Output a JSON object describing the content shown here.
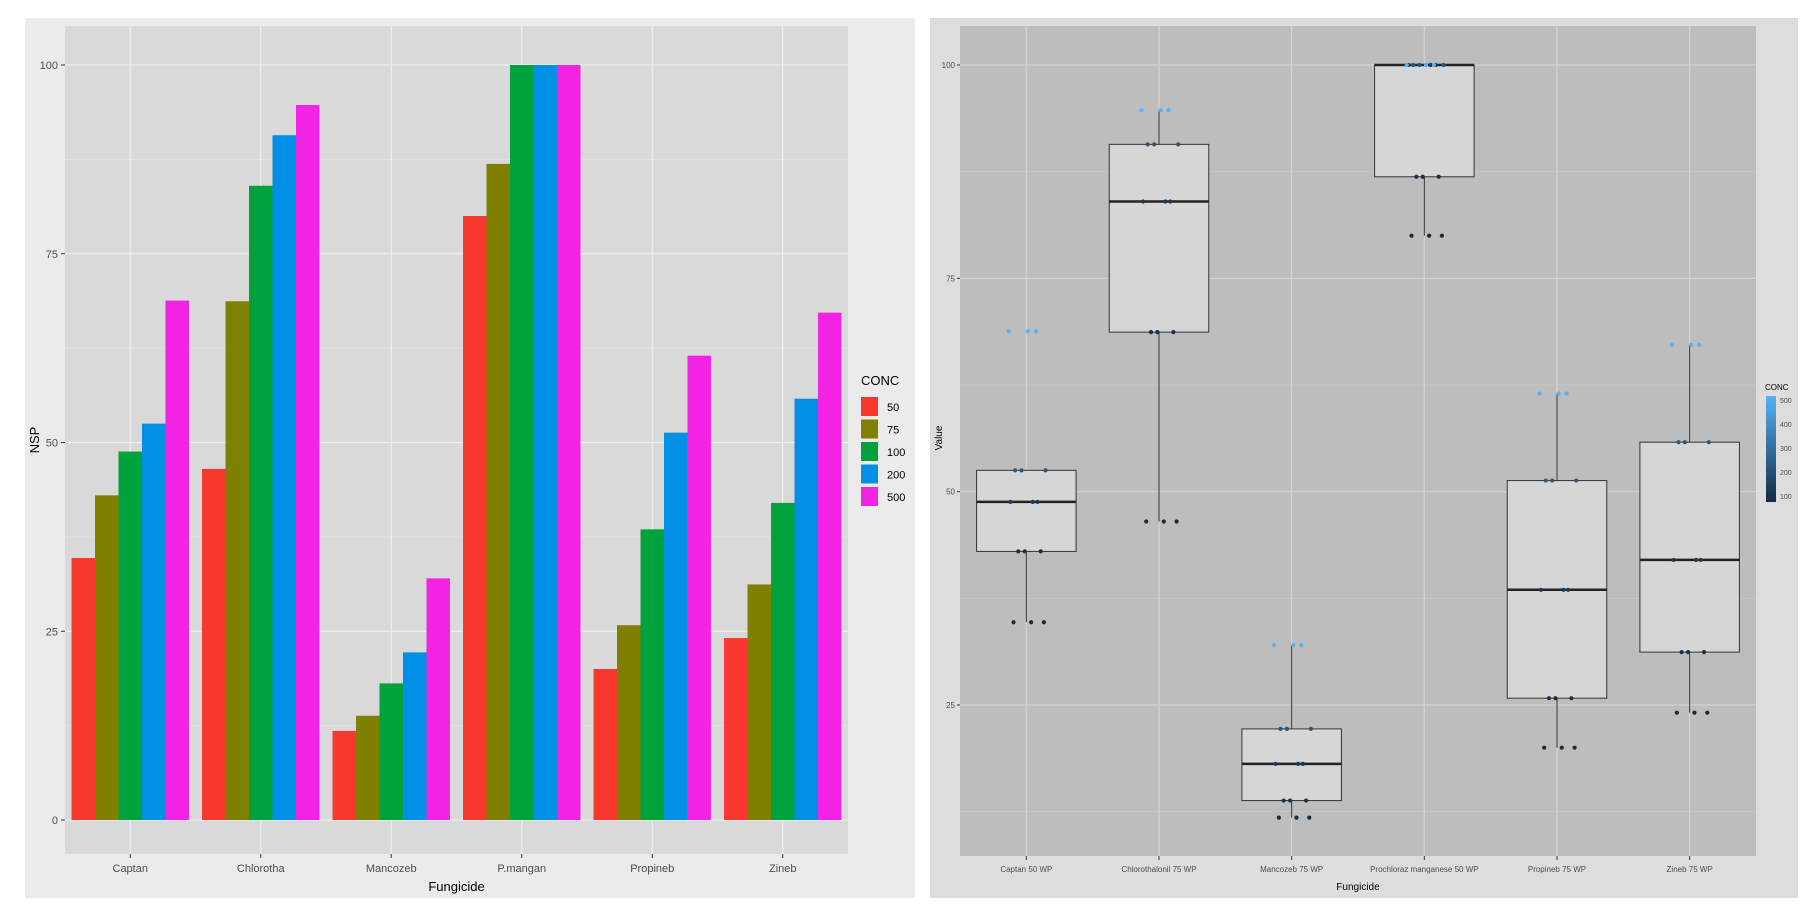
{
  "chart_data": [
    {
      "type": "bar",
      "xlabel": "Fungicide",
      "ylabel": "NSP",
      "ylim": [
        0,
        100
      ],
      "yticks": [
        "0",
        "25",
        "50",
        "75",
        "100"
      ],
      "categories": [
        "Captan",
        "Chlorotha",
        "Mancozeb",
        "P.mangan",
        "Propineb",
        "Zineb"
      ],
      "legend": {
        "title": "CONC",
        "position": "right"
      },
      "series": [
        {
          "name": "50",
          "color": "#f8372f",
          "values": [
            34.7,
            46.5,
            11.8,
            80.0,
            20.0,
            24.1
          ]
        },
        {
          "name": "75",
          "color": "#7f7f00",
          "values": [
            43.0,
            68.7,
            13.8,
            86.9,
            25.8,
            31.2
          ]
        },
        {
          "name": "100",
          "color": "#00a33b",
          "values": [
            48.8,
            84.0,
            18.1,
            100,
            38.5,
            42.0
          ]
        },
        {
          "name": "200",
          "color": "#0091e6",
          "values": [
            52.5,
            90.7,
            22.2,
            100,
            51.3,
            55.8
          ]
        },
        {
          "name": "500",
          "color": "#f323e6",
          "values": [
            68.8,
            94.7,
            32.0,
            100,
            61.5,
            67.2
          ]
        }
      ],
      "grid": true,
      "background": "#d9d9d9"
    },
    {
      "type": "box",
      "xlabel": "Fungicide",
      "ylabel": "Value",
      "yticks": [
        "25",
        "50",
        "75",
        "100"
      ],
      "ylim": [
        7,
        101.5
      ],
      "categories": [
        "Captan 50 WP",
        "Chlorothalonil 75 WP",
        "Mancozeb 75 WP",
        "Prochloraz manganese 50 WP",
        "Propineb 75 WP",
        "Zineb 75 WP"
      ],
      "boxes": [
        {
          "min": 34.7,
          "q1": 43.0,
          "median": 48.8,
          "q3": 52.5,
          "max": 52.5
        },
        {
          "min": 46.5,
          "q1": 68.7,
          "median": 84.0,
          "q3": 90.7,
          "max": 94.7
        },
        {
          "min": 11.8,
          "q1": 13.8,
          "median": 18.1,
          "q3": 22.2,
          "max": 32.0
        },
        {
          "min": 80.0,
          "q1": 86.9,
          "median": 100,
          "q3": 100,
          "max": 100
        },
        {
          "min": 20.0,
          "q1": 25.8,
          "median": 38.5,
          "q3": 51.3,
          "max": 61.5
        },
        {
          "min": 24.1,
          "q1": 31.2,
          "median": 42.0,
          "q3": 55.8,
          "max": 67.2
        }
      ],
      "points": [
        [
          34.7,
          34.7,
          34.7,
          43.0,
          43.0,
          43.0,
          48.8,
          48.8,
          48.8,
          52.5,
          52.5,
          52.5,
          68.8,
          68.8,
          68.8
        ],
        [
          46.5,
          46.5,
          46.5,
          68.7,
          68.7,
          68.7,
          84.0,
          84.0,
          84.0,
          90.7,
          90.7,
          90.7,
          94.7,
          94.7,
          94.7
        ],
        [
          11.8,
          11.8,
          11.8,
          13.8,
          13.8,
          13.8,
          18.1,
          18.1,
          18.1,
          22.2,
          22.2,
          22.2,
          32.0,
          32.0,
          32.0
        ],
        [
          80.0,
          80.0,
          80.0,
          86.9,
          86.9,
          86.9,
          100,
          100,
          100,
          100,
          100,
          100,
          100,
          100,
          100
        ],
        [
          20.0,
          20.0,
          20.0,
          25.8,
          25.8,
          25.8,
          38.5,
          38.5,
          38.5,
          51.3,
          51.3,
          51.3,
          61.5,
          61.5,
          61.5
        ],
        [
          24.1,
          24.1,
          24.1,
          31.2,
          31.2,
          31.2,
          42.0,
          42.0,
          42.0,
          55.8,
          55.8,
          55.8,
          67.2,
          67.2,
          67.2
        ]
      ],
      "point_conc": [
        50,
        50,
        50,
        75,
        75,
        75,
        100,
        100,
        100,
        200,
        200,
        200,
        500,
        500,
        500
      ],
      "legend": {
        "title": "CONC",
        "position": "right",
        "labels": [
          "500",
          "400",
          "300",
          "200",
          "100"
        ],
        "gradient": [
          "#132b43",
          "#56b1f7"
        ]
      },
      "grid": true,
      "background": "#bdbdbd"
    }
  ]
}
